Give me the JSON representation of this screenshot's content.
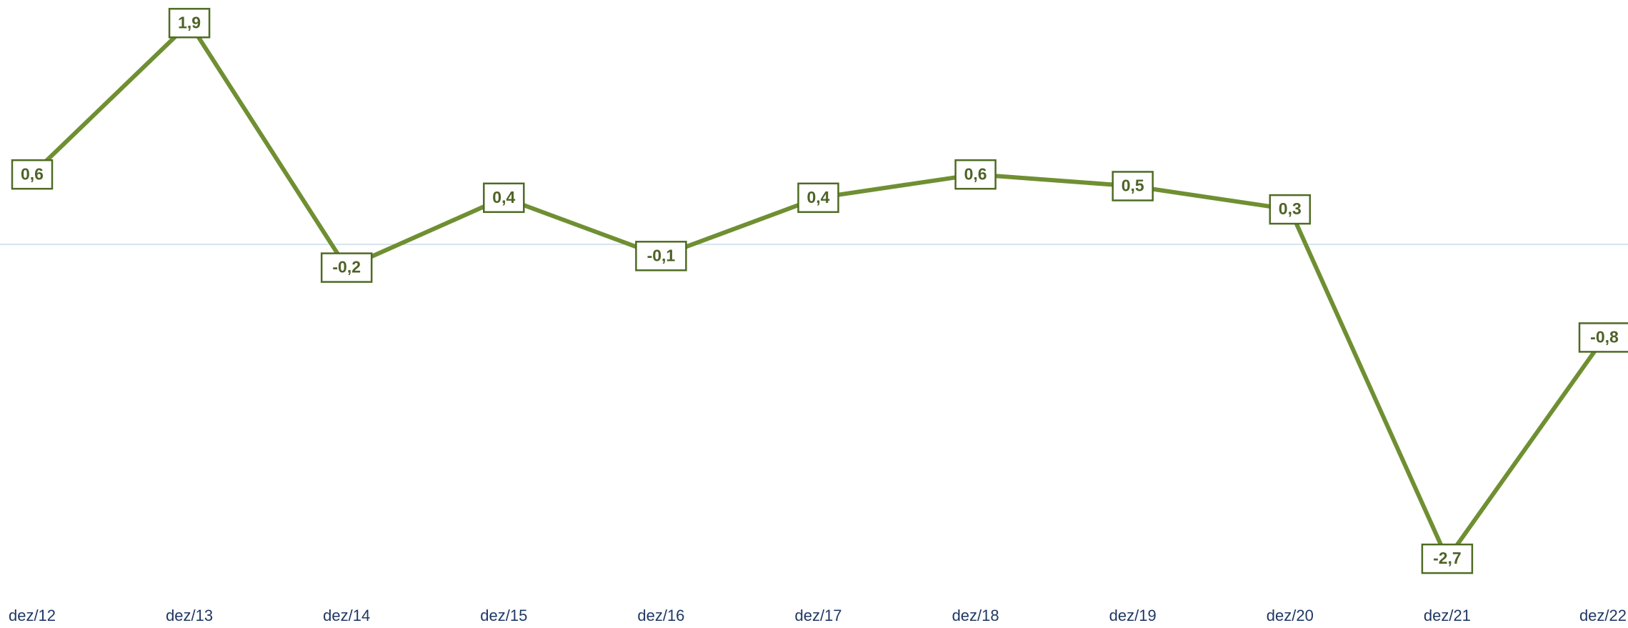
{
  "chart_data": {
    "type": "line",
    "categories": [
      "dez/12",
      "dez/13",
      "dez/14",
      "dez/15",
      "dez/16",
      "dez/17",
      "dez/18",
      "dez/19",
      "dez/20",
      "dez/21",
      "dez/22"
    ],
    "series": [
      {
        "color": "#6f8f32",
        "values": [
          0.6,
          1.9,
          -0.2,
          0.4,
          -0.1,
          0.4,
          0.6,
          0.5,
          0.3,
          -2.7,
          -0.8
        ],
        "value_labels": [
          "0,6",
          "1,9",
          "-0,2",
          "0,4",
          "-0,1",
          "0,4",
          "0,6",
          "0,5",
          "0,3",
          "-2,7",
          "-0,8"
        ]
      }
    ],
    "ylim": [
      -3,
      2
    ]
  }
}
